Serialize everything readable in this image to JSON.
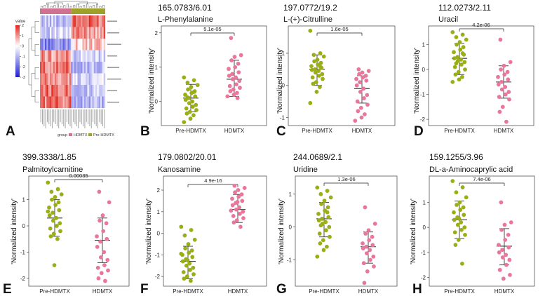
{
  "colors": {
    "pre": "#9aae16",
    "hd": "#e8779b",
    "pre_bar": "#a3a53e",
    "hd_bar": "#d98aa2",
    "axis": "#333333",
    "heat_low": "#1f1fd6",
    "heat_mid": "#ffffff",
    "heat_high": "#e0261d"
  },
  "chart_data": [
    {
      "panel": "A",
      "type": "heatmap",
      "legend_title": "value",
      "scale_ticks": [
        "2",
        "1",
        "0",
        "-1",
        "-2",
        "-3"
      ],
      "group_legend_title": "group",
      "groups": [
        "HDMTX",
        "Pre-HDMTX"
      ],
      "rows": 8,
      "columns": 40
    },
    {
      "panel": "B",
      "type": "scatter",
      "title": "165.0783/6.01",
      "subtitle": "L-Phenylalanine",
      "ylabel": "'Normalized intensity'",
      "categories": [
        "Pre-HDMTX",
        "HDMTX"
      ],
      "ylim": [
        -0.7,
        2.2
      ],
      "yticks": [
        0,
        1,
        2
      ],
      "p_value": "5.1e-05",
      "summary": [
        {
          "mean": 0.1,
          "low": -0.3,
          "high": 0.5
        },
        {
          "mean": 0.65,
          "low": 0.15,
          "high": 1.2
        }
      ],
      "series": [
        {
          "category": "Pre-HDMTX",
          "values": [
            0.7,
            0.62,
            0.55,
            0.48,
            0.42,
            0.35,
            0.3,
            0.25,
            0.2,
            0.15,
            0.1,
            0.05,
            0.0,
            -0.05,
            -0.1,
            -0.15,
            -0.2,
            -0.25,
            -0.3,
            -0.35,
            -0.4,
            -0.5,
            -0.6,
            0.28,
            0.12
          ]
        },
        {
          "category": "HDMTX",
          "values": [
            1.85,
            1.35,
            1.3,
            1.2,
            1.1,
            1.0,
            0.95,
            0.85,
            0.8,
            0.75,
            0.7,
            0.65,
            0.6,
            0.5,
            0.45,
            0.4,
            0.35,
            0.3,
            0.25,
            0.2,
            0.15,
            0.1
          ]
        }
      ]
    },
    {
      "panel": "C",
      "type": "scatter",
      "title": "197.0772/19.2",
      "subtitle": "L-(+)-Citrulline",
      "ylabel": "'Normalized intensity'",
      "categories": [
        "Pre-HDMTX",
        "HDMTX"
      ],
      "ylim": [
        -1.25,
        1.85
      ],
      "yticks": [
        -1,
        0,
        1
      ],
      "p_value": "1.6e-05",
      "summary": [
        {
          "mean": 0.5,
          "low": 0.0,
          "high": 0.95
        },
        {
          "mean": -0.1,
          "low": -0.55,
          "high": 0.3
        }
      ],
      "series": [
        {
          "category": "Pre-HDMTX",
          "values": [
            1.7,
            1.0,
            0.95,
            0.9,
            0.8,
            0.75,
            0.7,
            0.65,
            0.6,
            0.55,
            0.5,
            0.48,
            0.45,
            0.4,
            0.35,
            0.3,
            0.25,
            0.2,
            0.1,
            0.05,
            -0.05,
            -0.2,
            -0.55,
            0.58
          ]
        },
        {
          "category": "HDMTX",
          "values": [
            0.5,
            0.45,
            0.4,
            0.35,
            0.3,
            0.25,
            0.2,
            0.15,
            0.1,
            0.0,
            -0.1,
            -0.2,
            -0.3,
            -0.4,
            -0.5,
            -0.6,
            -0.7,
            -0.8,
            -0.9,
            -1.0,
            -1.1
          ]
        }
      ]
    },
    {
      "panel": "D",
      "type": "scatter",
      "title": "112.0273/2.11",
      "subtitle": "Uracil",
      "ylabel": "'Normalized intensity'",
      "categories": [
        "Pre-HDMTX",
        "HDMTX"
      ],
      "ylim": [
        -2.25,
        1.75
      ],
      "yticks": [
        -2,
        -1,
        0,
        1
      ],
      "p_value": "4.2e-06",
      "summary": [
        {
          "mean": 0.45,
          "low": -0.2,
          "high": 1.05
        },
        {
          "mean": -0.5,
          "low": -1.15,
          "high": 0.15
        }
      ],
      "series": [
        {
          "category": "Pre-HDMTX",
          "values": [
            1.5,
            1.4,
            1.3,
            1.2,
            1.1,
            1.0,
            0.9,
            0.8,
            0.7,
            0.6,
            0.5,
            0.45,
            0.4,
            0.35,
            0.3,
            0.2,
            0.1,
            0.0,
            -0.1,
            -0.2,
            -0.3,
            -0.4,
            -0.5,
            0.65,
            0.25
          ]
        },
        {
          "category": "HDMTX",
          "values": [
            1.2,
            0.3,
            0.15,
            0.0,
            -0.1,
            -0.2,
            -0.3,
            -0.4,
            -0.5,
            -0.6,
            -0.7,
            -0.8,
            -0.9,
            -1.0,
            -1.1,
            -1.2,
            -1.5,
            -1.7,
            -2.1
          ]
        }
      ]
    },
    {
      "panel": "E",
      "type": "scatter",
      "title": "399.3338/1.85",
      "subtitle": "Palmitoylcarnitine",
      "ylabel": "'Normalized intensity'",
      "categories": [
        "Pre-HDMTX",
        "HDMTX"
      ],
      "ylim": [
        -2.3,
        1.9
      ],
      "yticks": [
        -2,
        -1,
        0,
        1
      ],
      "p_value": "0.00035",
      "summary": [
        {
          "mean": 0.3,
          "low": -0.4,
          "high": 1.0
        },
        {
          "mean": -0.55,
          "low": -1.4,
          "high": 0.3
        }
      ],
      "series": [
        {
          "category": "Pre-HDMTX",
          "values": [
            1.65,
            1.4,
            1.3,
            1.2,
            1.1,
            1.0,
            0.9,
            0.8,
            0.7,
            0.6,
            0.5,
            0.4,
            0.3,
            0.2,
            0.1,
            0.0,
            -0.1,
            -0.2,
            -0.3,
            -0.4,
            -0.5,
            -1.5,
            0.55
          ]
        },
        {
          "category": "HDMTX",
          "values": [
            1.3,
            0.9,
            0.4,
            0.2,
            0.1,
            -0.2,
            -0.4,
            -0.5,
            -0.6,
            -0.8,
            -1.0,
            -1.2,
            -1.3,
            -1.5,
            -1.6,
            -1.7,
            -1.8,
            -2.0,
            -2.1
          ]
        }
      ]
    },
    {
      "panel": "F",
      "type": "scatter",
      "title": "179.0802/20.01",
      "subtitle": "Kanosamine",
      "ylabel": "'Normalized intensity'",
      "categories": [
        "Pre-HDMTX",
        "HDMTX"
      ],
      "ylim": [
        -2.45,
        2.65
      ],
      "yticks": [
        -2,
        -1,
        0,
        1,
        2
      ],
      "p_value": "4.9e-16",
      "summary": [
        {
          "mean": -1.3,
          "low": -2.1,
          "high": -0.6
        },
        {
          "mean": 1.1,
          "low": 0.5,
          "high": 1.8
        }
      ],
      "series": [
        {
          "category": "Pre-HDMTX",
          "values": [
            0.3,
            0.15,
            -0.1,
            -0.3,
            -0.5,
            -0.7,
            -0.8,
            -0.9,
            -1.0,
            -1.1,
            -1.2,
            -1.3,
            -1.4,
            -1.5,
            -1.6,
            -1.7,
            -1.8,
            -1.9,
            -2.0,
            -2.1,
            -2.2,
            -1.25,
            -0.95
          ]
        },
        {
          "category": "HDMTX",
          "values": [
            2.2,
            2.1,
            2.0,
            1.9,
            1.8,
            1.7,
            1.6,
            1.5,
            1.4,
            1.3,
            1.2,
            1.1,
            1.0,
            0.9,
            0.8,
            0.7,
            0.6,
            0.5,
            0.3,
            1.45,
            1.05
          ]
        }
      ]
    },
    {
      "panel": "G",
      "type": "scatter",
      "title": "244.0689/2.1",
      "subtitle": "Uridine",
      "ylabel": "'Normalized intensity'",
      "categories": [
        "Pre-HDMTX",
        "HDMTX"
      ],
      "ylim": [
        -1.8,
        1.55
      ],
      "yticks": [
        -1,
        0,
        1
      ],
      "p_value": "1.3e-06",
      "summary": [
        {
          "mean": 0.25,
          "low": -0.3,
          "high": 0.75
        },
        {
          "mean": -0.6,
          "low": -1.1,
          "high": -0.15
        }
      ],
      "series": [
        {
          "category": "Pre-HDMTX",
          "values": [
            1.2,
            1.1,
            1.0,
            0.9,
            0.8,
            0.7,
            0.6,
            0.5,
            0.4,
            0.3,
            0.25,
            0.2,
            0.15,
            0.1,
            0.0,
            -0.1,
            -0.2,
            -0.3,
            -0.4,
            -0.5,
            -0.6,
            -0.7,
            -0.9,
            0.45,
            0.05
          ]
        },
        {
          "category": "HDMTX",
          "values": [
            0.6,
            0.1,
            -0.1,
            -0.2,
            -0.3,
            -0.4,
            -0.5,
            -0.55,
            -0.6,
            -0.65,
            -0.7,
            -0.8,
            -0.9,
            -1.0,
            -1.1,
            -1.2,
            -1.35,
            -1.7
          ]
        }
      ]
    },
    {
      "panel": "H",
      "type": "scatter",
      "title": "159.1255/3.96",
      "subtitle": "DL-a-Aminocaprylic acid",
      "ylabel": "'Normalized intensity'",
      "categories": [
        "Pre-HDMTX",
        "HDMTX"
      ],
      "ylim": [
        -2.35,
        2.05
      ],
      "yticks": [
        -2,
        -1,
        0,
        1
      ],
      "p_value": "7.4e-06",
      "summary": [
        {
          "mean": 0.3,
          "low": -0.45,
          "high": 1.05
        },
        {
          "mean": -0.75,
          "low": -1.5,
          "high": -0.05
        }
      ],
      "series": [
        {
          "category": "Pre-HDMTX",
          "values": [
            1.85,
            1.6,
            1.4,
            1.2,
            1.0,
            0.9,
            0.8,
            0.7,
            0.6,
            0.5,
            0.4,
            0.3,
            0.2,
            0.1,
            0.0,
            -0.1,
            -0.2,
            -0.3,
            -0.5,
            -0.7,
            -1.45,
            0.35
          ]
        },
        {
          "category": "HDMTX",
          "values": [
            1.0,
            0.2,
            0.1,
            -0.1,
            -0.3,
            -0.5,
            -0.7,
            -0.8,
            -0.9,
            -1.0,
            -1.1,
            -1.2,
            -1.3,
            -1.5,
            -1.7,
            -1.9,
            -2.05
          ]
        }
      ]
    }
  ]
}
